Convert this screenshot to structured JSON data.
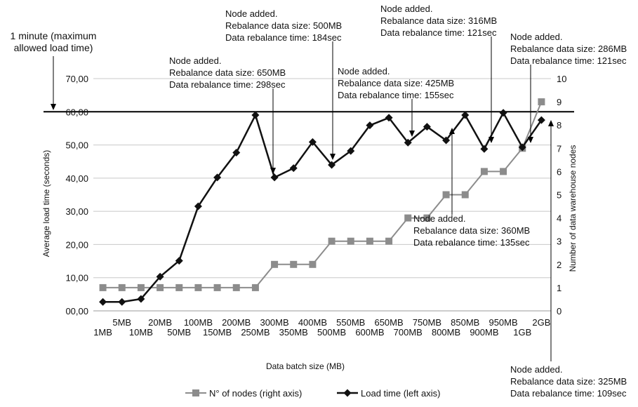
{
  "chart_data": {
    "type": "line",
    "title": "",
    "xlabel": "Data batch size (MB)",
    "ylabel": "Average load time (seconds)",
    "y2label": "Number of data warehouse nodes",
    "ylim": [
      0,
      70
    ],
    "y2lim": [
      0,
      10
    ],
    "y_ticks": [
      "00,00",
      "10,00",
      "20,00",
      "30,00",
      "40,00",
      "50,00",
      "60,00",
      "70,00"
    ],
    "y2_ticks": [
      "0",
      "1",
      "2",
      "3",
      "4",
      "5",
      "6",
      "7",
      "8",
      "9",
      "10"
    ],
    "categories": [
      "1MB",
      "5MB",
      "10MB",
      "20MB",
      "50MB",
      "100MB",
      "150MB",
      "200MB",
      "250MB",
      "300MB",
      "350MB",
      "400MB",
      "500MB",
      "550MB",
      "600MB",
      "650MB",
      "700MB",
      "750MB",
      "800MB",
      "850MB",
      "900MB",
      "950MB",
      "1GB",
      "2GB"
    ],
    "series": [
      {
        "name": "N° of nodes (right axis)",
        "axis": "right",
        "color": "#8c8c8c",
        "marker": "square",
        "values": [
          1,
          1,
          1,
          1,
          1,
          1,
          1,
          1,
          1,
          2,
          2,
          2,
          3,
          3,
          3,
          3,
          4,
          4,
          5,
          5,
          6,
          6,
          7,
          9
        ]
      },
      {
        "name": "Load time (left axis)",
        "axis": "left",
        "color": "#111111",
        "marker": "diamond",
        "values": [
          2.7,
          2.7,
          3.6,
          10.3,
          15.1,
          31.5,
          40.2,
          47.7,
          59.0,
          40.2,
          43.0,
          50.9,
          44.0,
          48.2,
          55.9,
          58.2,
          50.7,
          55.5,
          51.4,
          59.0,
          48.8,
          59.7,
          49.3,
          57.5
        ]
      }
    ],
    "reference_line": {
      "value": 60,
      "label_lines": [
        "1 minute (maximum",
        "allowed load time)"
      ]
    },
    "annotations": [
      {
        "target": "300MB",
        "lines": [
          "Node added.",
          "Rebalance data size: 650MB",
          "Data rebalance time: 298sec"
        ]
      },
      {
        "target": "500MB",
        "lines": [
          "Node added.",
          "Rebalance data size: 500MB",
          "Data rebalance time: 184sec"
        ]
      },
      {
        "target": "700MB",
        "lines": [
          "Node added.",
          "Rebalance data size: 425MB",
          "Data rebalance time: 155sec"
        ]
      },
      {
        "target": "800MB",
        "lines": [
          "Node added.",
          "Rebalance data size: 360MB",
          "Data rebalance time: 135sec"
        ]
      },
      {
        "target": "900MB",
        "lines": [
          "Node added.",
          "Rebalance data size: 316MB",
          "Data rebalance time: 121sec"
        ]
      },
      {
        "target": "1GB",
        "lines": [
          "Node added.",
          "Rebalance data size: 286MB",
          "Data rebalance time: 121sec"
        ]
      },
      {
        "target": "2GB",
        "lines": [
          "Node added.",
          "Rebalance data size: 325MB",
          "Data rebalance time: 109sec"
        ]
      }
    ],
    "legend": [
      "N° of nodes (right axis)",
      "Load time (left axis)"
    ],
    "legend_position": "bottom",
    "grid": true
  }
}
